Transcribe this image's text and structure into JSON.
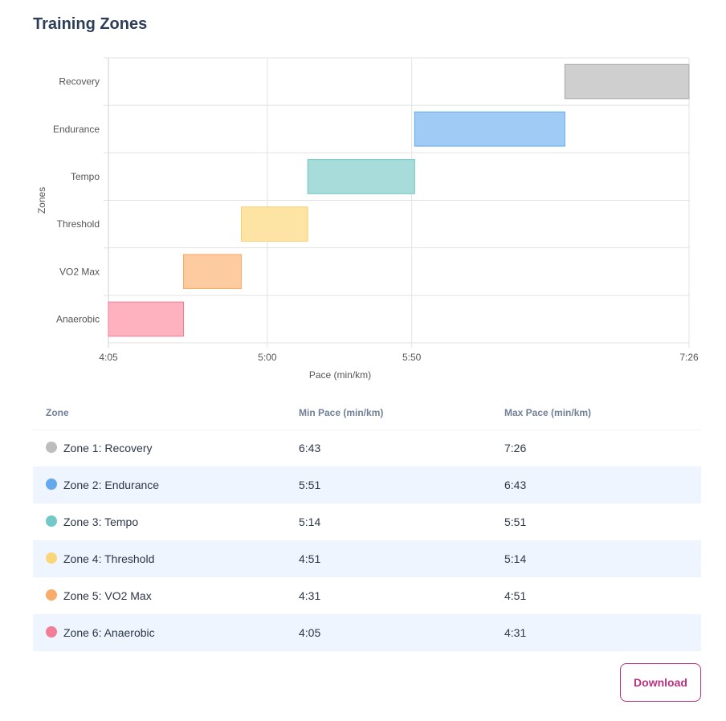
{
  "page": {
    "title": "Training Zones"
  },
  "chart_data": {
    "type": "bar",
    "orientation": "horizontal-floating",
    "title": "",
    "xlabel": "Pace (min/km)",
    "ylabel": "Zones",
    "x_ticks": [
      "4:05",
      "5:00",
      "5:50",
      "7:26"
    ],
    "xlim": [
      "4:05",
      "7:26"
    ],
    "grid": true,
    "legend": "none",
    "categories": [
      "Recovery",
      "Endurance",
      "Tempo",
      "Threshold",
      "VO2 Max",
      "Anaerobic"
    ],
    "ranges": [
      {
        "min": "6:43",
        "max": "7:26",
        "color": "#cfcfcf",
        "border": "#a8a8a8"
      },
      {
        "min": "5:51",
        "max": "6:43",
        "color": "#9fcbf4",
        "border": "#5ea8ec"
      },
      {
        "min": "5:14",
        "max": "5:51",
        "color": "#a8dcdb",
        "border": "#6cc4c3"
      },
      {
        "min": "4:51",
        "max": "5:14",
        "color": "#fee4a4",
        "border": "#f8cf6c"
      },
      {
        "min": "4:31",
        "max": "4:51",
        "color": "#fdcba0",
        "border": "#f9a862"
      },
      {
        "min": "4:05",
        "max": "4:31",
        "color": "#feb1bf",
        "border": "#f47c94"
      }
    ]
  },
  "table": {
    "headers": {
      "zone": "Zone",
      "min": "Min Pace (min/km)",
      "max": "Max Pace (min/km)"
    },
    "rows": [
      {
        "zone": "Zone 1: Recovery",
        "min": "6:43",
        "max": "7:26",
        "color": "#bdbdbd"
      },
      {
        "zone": "Zone 2: Endurance",
        "min": "5:51",
        "max": "6:43",
        "color": "#63a9ec"
      },
      {
        "zone": "Zone 3: Tempo",
        "min": "5:14",
        "max": "5:51",
        "color": "#73c9c8"
      },
      {
        "zone": "Zone 4: Threshold",
        "min": "4:51",
        "max": "5:14",
        "color": "#f9d778"
      },
      {
        "zone": "Zone 5: VO2 Max",
        "min": "4:31",
        "max": "4:51",
        "color": "#f8ac6a"
      },
      {
        "zone": "Zone 6: Anaerobic",
        "min": "4:05",
        "max": "4:31",
        "color": "#f27e96"
      }
    ]
  },
  "actions": {
    "download_label": "Download"
  }
}
